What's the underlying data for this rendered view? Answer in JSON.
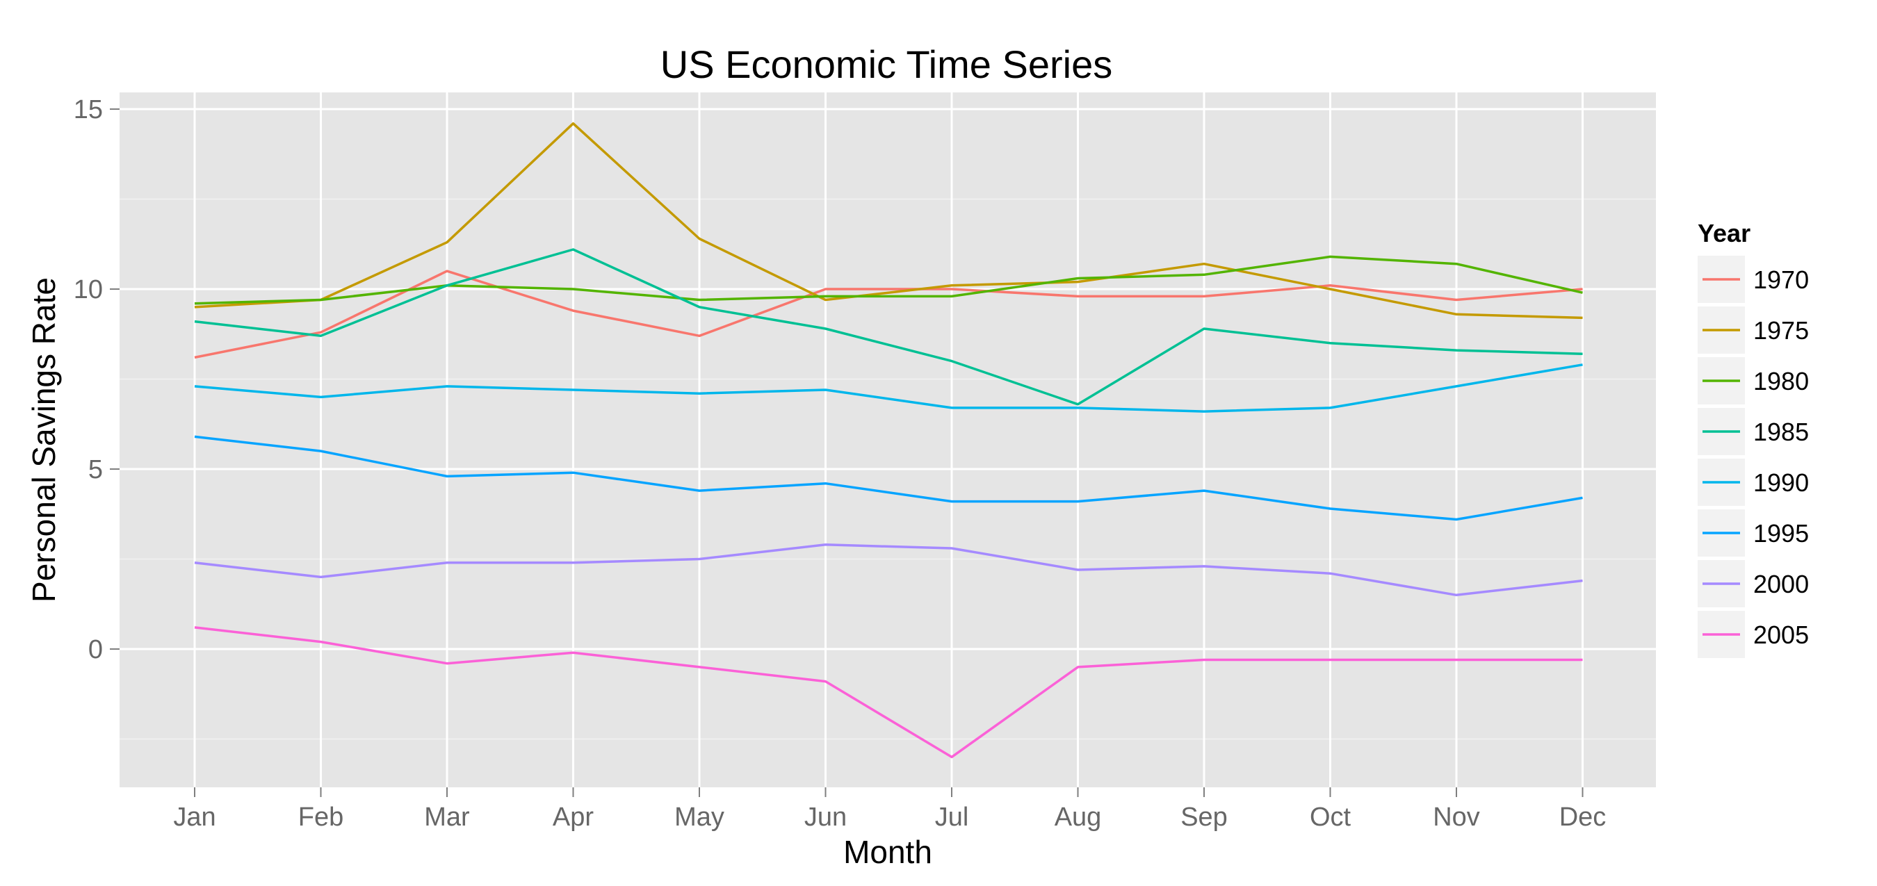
{
  "chart_data": {
    "type": "line",
    "title": "US Economic Time Series",
    "xlabel": "Month",
    "ylabel": "Personal Savings Rate",
    "categories": [
      "Jan",
      "Feb",
      "Mar",
      "Apr",
      "May",
      "Jun",
      "Jul",
      "Aug",
      "Sep",
      "Oct",
      "Nov",
      "Dec"
    ],
    "ylim": [
      -3.8,
      15.5
    ],
    "yticks": [
      0,
      5,
      10,
      15
    ],
    "grid": true,
    "legend": {
      "title": "Year",
      "placement": "right"
    },
    "series": [
      {
        "name": "1970",
        "color": "#F8766D",
        "values": [
          8.1,
          8.8,
          10.5,
          9.4,
          8.7,
          10.0,
          10.0,
          9.8,
          9.8,
          10.1,
          9.7,
          10.0
        ]
      },
      {
        "name": "1975",
        "color": "#C49A00",
        "values": [
          9.5,
          9.7,
          11.3,
          14.6,
          11.4,
          9.7,
          10.1,
          10.2,
          10.7,
          10.0,
          9.3,
          9.2
        ]
      },
      {
        "name": "1980",
        "color": "#53B400",
        "values": [
          9.6,
          9.7,
          10.1,
          10.0,
          9.7,
          9.8,
          9.8,
          10.3,
          10.4,
          10.9,
          10.7,
          9.9
        ]
      },
      {
        "name": "1985",
        "color": "#00C094",
        "values": [
          9.1,
          8.7,
          10.1,
          11.1,
          9.5,
          8.9,
          8.0,
          6.8,
          8.9,
          8.5,
          8.3,
          8.2
        ]
      },
      {
        "name": "1990",
        "color": "#00B6EB",
        "values": [
          7.3,
          7.0,
          7.3,
          7.2,
          7.1,
          7.2,
          6.7,
          6.7,
          6.6,
          6.7,
          7.3,
          7.9
        ]
      },
      {
        "name": "1995",
        "color": "#06A4FF",
        "values": [
          5.9,
          5.5,
          4.8,
          4.9,
          4.4,
          4.6,
          4.1,
          4.1,
          4.4,
          3.9,
          3.6,
          4.2
        ]
      },
      {
        "name": "2000",
        "color": "#A58AFF",
        "values": [
          2.4,
          2.0,
          2.4,
          2.4,
          2.5,
          2.9,
          2.8,
          2.2,
          2.3,
          2.1,
          1.5,
          1.9
        ]
      },
      {
        "name": "2005",
        "color": "#FB61D7",
        "values": [
          0.6,
          0.2,
          -0.4,
          -0.1,
          -0.5,
          -0.9,
          -3.0,
          -0.5,
          -0.3,
          -0.3,
          -0.3,
          -0.3
        ]
      }
    ]
  }
}
